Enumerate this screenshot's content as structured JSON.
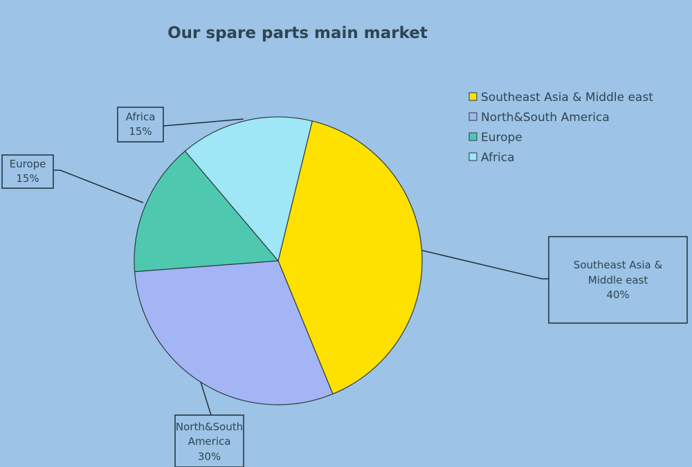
{
  "chart_data": {
    "type": "pie",
    "title": "Our spare parts main market",
    "categories": [
      "Southeast Asia & Middle east",
      "North&South America",
      "Europe",
      "Africa"
    ],
    "values": [
      40,
      30,
      15,
      15
    ],
    "data_labels": [
      [
        "Southeast Asia &",
        "Middle east",
        "40%"
      ],
      [
        "North&South",
        "America",
        "30%"
      ],
      [
        "Europe",
        "15%"
      ],
      [
        "Africa",
        "15%"
      ]
    ],
    "colors": [
      "#ffe100",
      "#a4b5f5",
      "#4fc8b0",
      "#9fe6f6"
    ],
    "background": "#9dc3e6",
    "legend_position": "top-right",
    "direction": "clockwise"
  }
}
